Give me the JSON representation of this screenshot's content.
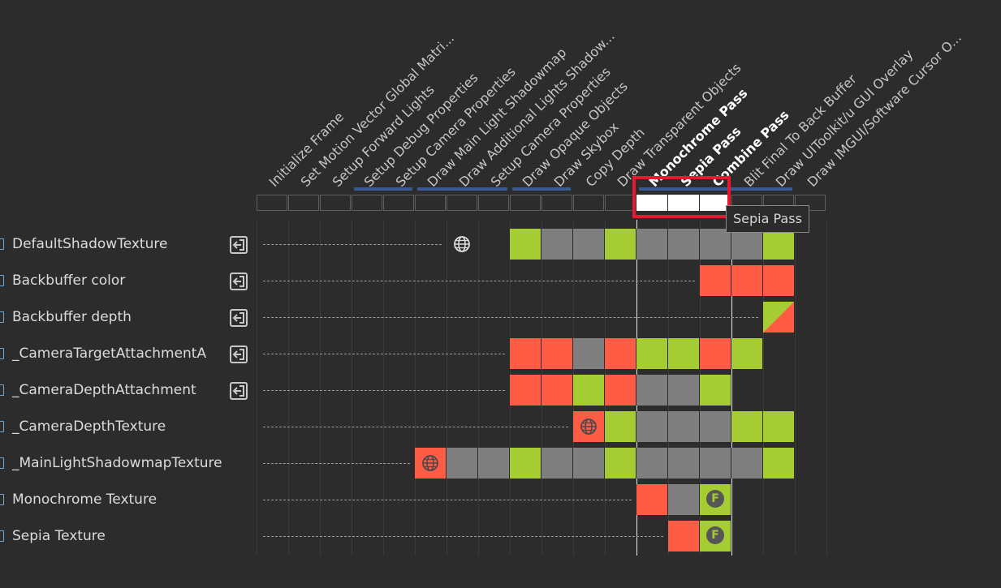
{
  "passes": [
    {
      "name": "Initialize Frame"
    },
    {
      "name": "Set Motion Vector Global Matri..."
    },
    {
      "name": "Setup Forward Lights"
    },
    {
      "name": "Setup Debug Properties"
    },
    {
      "name": "Setup Camera Properties"
    },
    {
      "name": "Draw Main Light Shadowmap"
    },
    {
      "name": "Draw Additional Lights Shadow..."
    },
    {
      "name": "Setup Camera Properties"
    },
    {
      "name": "Draw Opaque Objects"
    },
    {
      "name": "Draw Skybox"
    },
    {
      "name": "Copy Depth"
    },
    {
      "name": "Draw Transparent Objects"
    },
    {
      "name": "Monochrome Pass",
      "bold": true,
      "selected": true
    },
    {
      "name": "Sepia Pass",
      "bold": true,
      "selected": true
    },
    {
      "name": "Combine Pass",
      "bold": true,
      "selected": true
    },
    {
      "name": "Blit Final To Back Buffer"
    },
    {
      "name": "Draw UIToolkit/u GUI Overlay"
    },
    {
      "name": "Draw IMGUI/Software Cursor O..."
    }
  ],
  "merge_groups": [
    [
      3,
      4
    ],
    [
      5,
      7
    ],
    [
      8,
      9
    ],
    [
      12,
      16
    ]
  ],
  "resources": [
    {
      "name": "DefaultShadowTexture",
      "imported": true,
      "create": 6,
      "cells": [
        "gray-globe",
        "",
        "green",
        "gray",
        "gray",
        "green",
        "gray",
        "gray",
        "gray",
        "gray",
        "green"
      ]
    },
    {
      "name": "Backbuffer color",
      "imported": true,
      "create": 14,
      "cells": [
        "red",
        "red",
        "red"
      ]
    },
    {
      "name": "Backbuffer depth",
      "imported": true,
      "create": 16,
      "cells": [
        "rw"
      ]
    },
    {
      "name": "_CameraTargetAttachmentA",
      "imported": true,
      "create": 8,
      "cells": [
        "red",
        "red",
        "gray",
        "red",
        "green",
        "green",
        "red",
        "green"
      ]
    },
    {
      "name": "_CameraDepthAttachment",
      "imported": true,
      "create": 8,
      "cells": [
        "red",
        "red",
        "green",
        "red",
        "gray",
        "gray",
        "green"
      ]
    },
    {
      "name": "_CameraDepthTexture",
      "imported": false,
      "create": 10,
      "cells": [
        "red-globe",
        "green",
        "gray",
        "gray",
        "gray",
        "green",
        "green"
      ]
    },
    {
      "name": "_MainLightShadowmapTexture",
      "imported": false,
      "create": 5,
      "cells": [
        "red-globe",
        "gray",
        "gray",
        "green",
        "gray",
        "gray",
        "green",
        "gray",
        "gray",
        "gray",
        "gray",
        "green"
      ]
    },
    {
      "name": "Monochrome Texture",
      "imported": false,
      "create": 12,
      "cells": [
        "red",
        "gray",
        "green-F"
      ]
    },
    {
      "name": "Sepia Texture",
      "imported": false,
      "create": 13,
      "cells": [
        "red",
        "green-F"
      ]
    }
  ],
  "tooltip": {
    "text": "Sepia Pass"
  },
  "badge_letter": "F",
  "colors": {
    "write": "#ff5c45",
    "read": "#a5cc33",
    "unused": "#7f7f7f",
    "merge": "#3a5a96",
    "selection": "#e8182f"
  },
  "icons": {
    "import": "import-arrow-icon",
    "globe": "globe-icon",
    "resource": "texture-icon",
    "framebuffer": "framebuffer-fetch-icon"
  }
}
